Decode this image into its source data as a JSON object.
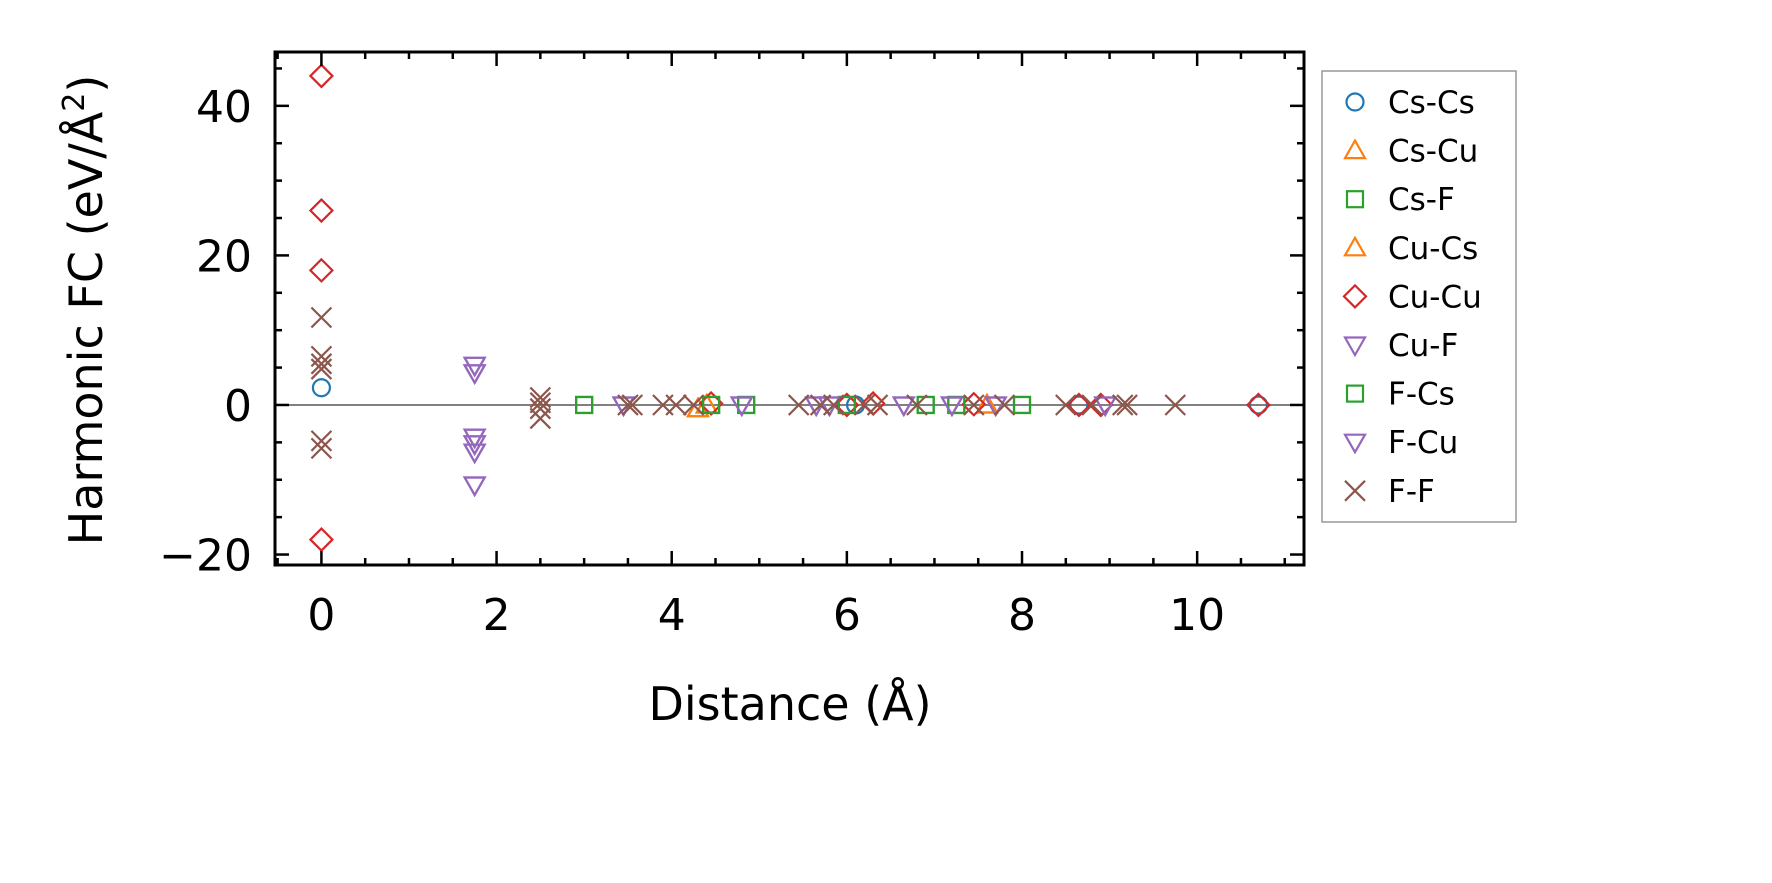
{
  "chart_data": {
    "type": "scatter",
    "title": "",
    "xlabel": "Distance (Å)",
    "ylabel": "Harmonic FC (eV/Å²)",
    "ylabel_main": "Harmonic FC (eV/Å",
    "ylabel_sup": "2",
    "ylabel_end": ")",
    "xlim": [
      -0.53,
      11.22
    ],
    "ylim": [
      -21.4,
      47.2
    ],
    "xticks": [
      0,
      2,
      4,
      6,
      8,
      10
    ],
    "xtick_labels": [
      "0",
      "2",
      "4",
      "6",
      "8",
      "10"
    ],
    "yticks": [
      -20,
      0,
      20,
      40
    ],
    "ytick_labels": [
      "−20",
      "0",
      "20",
      "40"
    ],
    "zero_line": 0,
    "legend_position": "outside-right",
    "series": [
      {
        "name": "Cs-Cs",
        "marker": "circle",
        "color": "#1f77b4",
        "points": [
          [
            0,
            2.3
          ],
          [
            8.65,
            0
          ],
          [
            10.7,
            0
          ],
          [
            6.1,
            0
          ]
        ]
      },
      {
        "name": "Cs-Cu",
        "marker": "triangle-up",
        "color": "#ff7f0e",
        "points": [
          [
            4.3,
            -0.5
          ],
          [
            4.4,
            0
          ],
          [
            7.6,
            0
          ]
        ]
      },
      {
        "name": "Cs-F",
        "marker": "square",
        "color": "#2ca02c",
        "points": [
          [
            3.0,
            0
          ],
          [
            4.45,
            0
          ],
          [
            4.85,
            0
          ],
          [
            6.0,
            0
          ],
          [
            6.9,
            0
          ],
          [
            7.25,
            0
          ],
          [
            8.0,
            0
          ]
        ]
      },
      {
        "name": "Cu-Cs",
        "marker": "triangle-up",
        "color": "#ff7f0e",
        "points": [
          [
            4.3,
            -0.5
          ],
          [
            4.4,
            0
          ],
          [
            7.6,
            0
          ]
        ]
      },
      {
        "name": "Cu-Cu",
        "marker": "diamond",
        "color": "#d62728",
        "points": [
          [
            0,
            44
          ],
          [
            0,
            26
          ],
          [
            0,
            18
          ],
          [
            0,
            -18
          ],
          [
            4.45,
            0.2
          ],
          [
            6.0,
            0
          ],
          [
            6.3,
            0.2
          ],
          [
            7.45,
            0.1
          ],
          [
            8.65,
            0
          ],
          [
            8.9,
            0
          ],
          [
            10.7,
            0
          ]
        ]
      },
      {
        "name": "Cu-F",
        "marker": "triangle-down",
        "color": "#9467bd",
        "points": [
          [
            1.75,
            5.3
          ],
          [
            1.75,
            4.3
          ],
          [
            1.75,
            -4.3
          ],
          [
            1.75,
            -5.2
          ],
          [
            1.75,
            -6.3
          ],
          [
            1.75,
            -10.7
          ],
          [
            3.45,
            0
          ],
          [
            4.8,
            0
          ],
          [
            5.65,
            0
          ],
          [
            5.8,
            0
          ],
          [
            6.65,
            0
          ],
          [
            7.2,
            0
          ],
          [
            7.7,
            0
          ],
          [
            8.95,
            0
          ]
        ]
      },
      {
        "name": "F-Cs",
        "marker": "square",
        "color": "#2ca02c",
        "points": [
          [
            3.0,
            0
          ],
          [
            4.45,
            0
          ],
          [
            4.85,
            0
          ],
          [
            6.0,
            0
          ],
          [
            6.9,
            0
          ],
          [
            7.25,
            0
          ],
          [
            8.0,
            0
          ]
        ]
      },
      {
        "name": "F-Cu",
        "marker": "triangle-down",
        "color": "#9467bd",
        "points": [
          [
            1.75,
            5.3
          ],
          [
            1.75,
            4.3
          ],
          [
            1.75,
            -4.3
          ],
          [
            1.75,
            -5.2
          ],
          [
            1.75,
            -6.3
          ],
          [
            1.75,
            -10.7
          ],
          [
            3.45,
            0
          ],
          [
            4.8,
            0
          ],
          [
            5.65,
            0
          ],
          [
            5.8,
            0
          ],
          [
            6.65,
            0
          ],
          [
            7.2,
            0
          ],
          [
            7.7,
            0
          ],
          [
            8.95,
            0
          ]
        ]
      },
      {
        "name": "F-F",
        "marker": "x",
        "color": "#8c564b",
        "points": [
          [
            0,
            11.7
          ],
          [
            0,
            6.5
          ],
          [
            0,
            5.5
          ],
          [
            0,
            4.8
          ],
          [
            0,
            -4.8
          ],
          [
            0,
            -5.8
          ],
          [
            2.5,
            1
          ],
          [
            2.5,
            0.3
          ],
          [
            2.5,
            -0.5
          ],
          [
            2.5,
            -1.8
          ],
          [
            3.5,
            0
          ],
          [
            3.55,
            0
          ],
          [
            3.9,
            0
          ],
          [
            4.05,
            0
          ],
          [
            4.25,
            0
          ],
          [
            5.45,
            0
          ],
          [
            5.7,
            0
          ],
          [
            5.85,
            0
          ],
          [
            6.2,
            0
          ],
          [
            6.35,
            0
          ],
          [
            6.8,
            0
          ],
          [
            7.45,
            0
          ],
          [
            7.8,
            0
          ],
          [
            8.5,
            0
          ],
          [
            8.8,
            0
          ],
          [
            9.15,
            0
          ],
          [
            9.2,
            0
          ],
          [
            9.75,
            0
          ]
        ]
      }
    ]
  }
}
